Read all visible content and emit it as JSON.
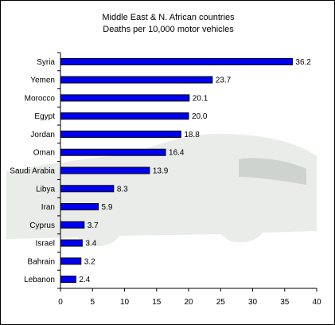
{
  "chart_data": {
    "type": "bar",
    "orientation": "horizontal",
    "title_lines": [
      "Middle East & N. African countries",
      "Deaths per 10,000 motor vehicles"
    ],
    "categories": [
      "Syria",
      "Yemen",
      "Morocco",
      "Egypt",
      "Jordan",
      "Oman",
      "Saudi Arabia",
      "Libya",
      "Iran",
      "Cyprus",
      "Israel",
      "Bahrain",
      "Lebanon"
    ],
    "values": [
      36.2,
      23.7,
      20.1,
      20.0,
      18.8,
      16.4,
      13.9,
      8.3,
      5.9,
      3.7,
      3.4,
      3.2,
      2.4
    ],
    "value_labels": [
      "36.2",
      "23.7",
      "20.1",
      "20.0",
      "18.8",
      "16.4",
      "13.9",
      "8.3",
      "5.9",
      "3.7",
      "3.4",
      "3.2",
      "2.4"
    ],
    "xlim": [
      0,
      40
    ],
    "xticks": [
      0,
      5,
      10,
      15,
      20,
      25,
      30,
      35,
      40
    ],
    "grid": false,
    "legend": "none",
    "colors": {
      "bar_fill": "#0000ee",
      "bar_stroke": "#000000",
      "background": "#ffffff",
      "watermark": "#d7dcd7"
    }
  }
}
